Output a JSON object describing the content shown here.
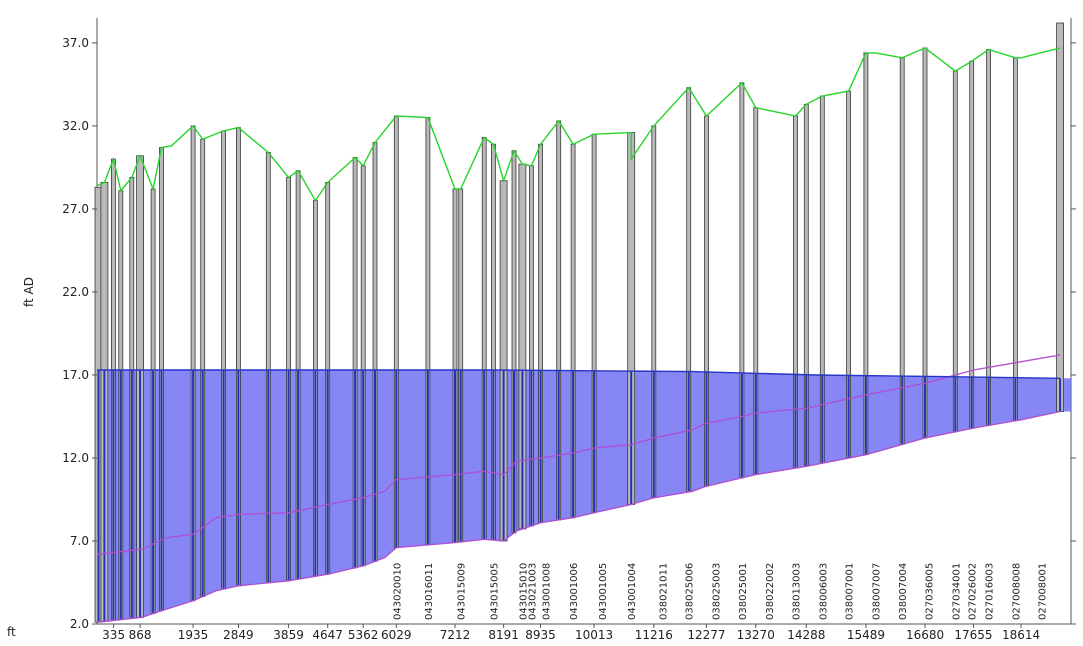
{
  "chart_data": {
    "type": "line",
    "ylabel": "ft AD",
    "xlabel": "ft",
    "ylim": [
      2.0,
      38.5
    ],
    "xlim": [
      0,
      19620
    ],
    "y_ticks": [
      "2.0",
      "7.0",
      "12.0",
      "17.0",
      "22.0",
      "27.0",
      "32.0",
      "37.0"
    ],
    "x_ticks": [
      {
        "x": 335,
        "label": "335"
      },
      {
        "x": 868,
        "label": "868"
      },
      {
        "x": 1935,
        "label": "1935"
      },
      {
        "x": 2849,
        "label": "2849"
      },
      {
        "x": 3859,
        "label": "3859"
      },
      {
        "x": 4647,
        "label": "4647"
      },
      {
        "x": 5362,
        "label": "5362"
      },
      {
        "x": 6029,
        "label": "6029"
      },
      {
        "x": 7212,
        "label": "7212"
      },
      {
        "x": 8191,
        "label": "8191"
      },
      {
        "x": 8935,
        "label": "8935"
      },
      {
        "x": 10013,
        "label": "10013"
      },
      {
        "x": 11216,
        "label": "11216"
      },
      {
        "x": 12277,
        "label": "12277"
      },
      {
        "x": 13270,
        "label": "13270"
      },
      {
        "x": 14288,
        "label": "14288"
      },
      {
        "x": 15489,
        "label": "15489"
      },
      {
        "x": 16680,
        "label": "16680"
      },
      {
        "x": 17655,
        "label": "17655"
      },
      {
        "x": 18614,
        "label": "18614"
      }
    ],
    "node_labels": [
      {
        "x": 6029,
        "label": "043020010"
      },
      {
        "x": 6665,
        "label": "043016011"
      },
      {
        "x": 7326,
        "label": "043015009"
      },
      {
        "x": 7985,
        "label": "043015005"
      },
      {
        "x": 8570,
        "label": "043015010"
      },
      {
        "x": 8750,
        "label": "043021003"
      },
      {
        "x": 9035,
        "label": "043001008"
      },
      {
        "x": 9590,
        "label": "043001006"
      },
      {
        "x": 10175,
        "label": "043001005"
      },
      {
        "x": 10760,
        "label": "043001004"
      },
      {
        "x": 11390,
        "label": "038021011"
      },
      {
        "x": 11920,
        "label": "038025006"
      },
      {
        "x": 12460,
        "label": "038025003"
      },
      {
        "x": 12990,
        "label": "038025001"
      },
      {
        "x": 13535,
        "label": "038022002"
      },
      {
        "x": 14070,
        "label": "038013003"
      },
      {
        "x": 14610,
        "label": "038006003"
      },
      {
        "x": 15140,
        "label": "038007001"
      },
      {
        "x": 15680,
        "label": "038007007"
      },
      {
        "x": 16220,
        "label": "038007004"
      },
      {
        "x": 16750,
        "label": "027036005"
      },
      {
        "x": 17290,
        "label": "027034001"
      },
      {
        "x": 17620,
        "label": "027026002"
      },
      {
        "x": 17960,
        "label": "027016003"
      },
      {
        "x": 18500,
        "label": "027008008"
      },
      {
        "x": 19030,
        "label": "027008001"
      }
    ],
    "ground_level": {
      "name": "",
      "color": "#27d42a",
      "points": [
        [
          0,
          28.4
        ],
        [
          150,
          28.6
        ],
        [
          330,
          30.0
        ],
        [
          480,
          28.1
        ],
        [
          700,
          28.9
        ],
        [
          868,
          30.2
        ],
        [
          1130,
          28.2
        ],
        [
          1300,
          30.7
        ],
        [
          1500,
          30.8
        ],
        [
          1935,
          32.0
        ],
        [
          2130,
          31.2
        ],
        [
          2550,
          31.7
        ],
        [
          2849,
          31.9
        ],
        [
          3450,
          30.4
        ],
        [
          3859,
          28.9
        ],
        [
          4050,
          29.3
        ],
        [
          4400,
          27.5
        ],
        [
          4647,
          28.6
        ],
        [
          5200,
          30.1
        ],
        [
          5362,
          29.6
        ],
        [
          5600,
          31.0
        ],
        [
          6029,
          32.6
        ],
        [
          6665,
          32.5
        ],
        [
          7212,
          28.2
        ],
        [
          7326,
          28.2
        ],
        [
          7800,
          31.3
        ],
        [
          7985,
          30.9
        ],
        [
          8191,
          28.7
        ],
        [
          8400,
          30.5
        ],
        [
          8570,
          29.7
        ],
        [
          8750,
          29.6
        ],
        [
          8935,
          30.9
        ],
        [
          9300,
          32.3
        ],
        [
          9590,
          30.9
        ],
        [
          10013,
          31.5
        ],
        [
          10760,
          31.6
        ],
        [
          10760,
          30.0
        ],
        [
          11216,
          32.0
        ],
        [
          11920,
          34.3
        ],
        [
          12277,
          32.6
        ],
        [
          12990,
          34.6
        ],
        [
          13270,
          33.1
        ],
        [
          14070,
          32.6
        ],
        [
          14288,
          33.3
        ],
        [
          14610,
          33.8
        ],
        [
          15140,
          34.1
        ],
        [
          15489,
          36.4
        ],
        [
          15680,
          36.4
        ],
        [
          16220,
          36.1
        ],
        [
          16680,
          36.7
        ],
        [
          17290,
          35.3
        ],
        [
          17620,
          35.9
        ],
        [
          17960,
          36.6
        ],
        [
          18500,
          36.1
        ],
        [
          18614,
          36.1
        ],
        [
          19400,
          36.7
        ]
      ]
    },
    "hydraulic_grade": {
      "name": "",
      "color": "#2436c7",
      "points": [
        [
          0,
          17.3
        ],
        [
          8000,
          17.3
        ],
        [
          12000,
          17.2
        ],
        [
          14500,
          17.0
        ],
        [
          17000,
          16.9
        ],
        [
          19400,
          16.8
        ]
      ]
    },
    "pipe_crown": {
      "name": "",
      "color": "#b04fd0",
      "points": [
        [
          0,
          6.2
        ],
        [
          900,
          6.5
        ],
        [
          1400,
          7.2
        ],
        [
          1935,
          7.4
        ],
        [
          2400,
          8.4
        ],
        [
          2849,
          8.6
        ],
        [
          3859,
          8.7
        ],
        [
          4647,
          9.2
        ],
        [
          5362,
          9.6
        ],
        [
          5800,
          10.0
        ],
        [
          6029,
          10.7
        ],
        [
          7212,
          11.0
        ],
        [
          7800,
          11.2
        ],
        [
          8191,
          11.0
        ],
        [
          8450,
          11.8
        ],
        [
          8935,
          12.0
        ],
        [
          9590,
          12.3
        ],
        [
          10013,
          12.6
        ],
        [
          10760,
          12.8
        ],
        [
          11216,
          13.2
        ],
        [
          12000,
          13.7
        ],
        [
          12277,
          14.1
        ],
        [
          12990,
          14.5
        ],
        [
          13270,
          14.7
        ],
        [
          14288,
          15.0
        ],
        [
          15489,
          15.8
        ],
        [
          16680,
          16.5
        ],
        [
          17655,
          17.3
        ],
        [
          18614,
          17.8
        ],
        [
          19400,
          18.2
        ]
      ]
    },
    "pipe_invert": {
      "name": "",
      "color": "#b04fd0",
      "points": [
        [
          0,
          2.1
        ],
        [
          900,
          2.4
        ],
        [
          1400,
          2.9
        ],
        [
          1935,
          3.4
        ],
        [
          2400,
          4.0
        ],
        [
          2849,
          4.3
        ],
        [
          3859,
          4.6
        ],
        [
          4647,
          5.0
        ],
        [
          5362,
          5.5
        ],
        [
          5800,
          6.0
        ],
        [
          6029,
          6.6
        ],
        [
          7212,
          6.9
        ],
        [
          7800,
          7.1
        ],
        [
          8191,
          7.0
        ],
        [
          8450,
          7.6
        ],
        [
          8935,
          8.1
        ],
        [
          9590,
          8.4
        ],
        [
          10013,
          8.7
        ],
        [
          10760,
          9.2
        ],
        [
          11216,
          9.6
        ],
        [
          12000,
          10.0
        ],
        [
          12277,
          10.3
        ],
        [
          12990,
          10.8
        ],
        [
          13270,
          11.0
        ],
        [
          14288,
          11.5
        ],
        [
          15489,
          12.2
        ],
        [
          16680,
          13.2
        ],
        [
          17655,
          13.8
        ],
        [
          18614,
          14.3
        ],
        [
          19400,
          14.8
        ]
      ]
    },
    "structures": {
      "fill": "#b9b9b9",
      "outline": "#3a3a3a",
      "columns": [
        {
          "x": 30,
          "top": 28.3,
          "w": 2
        },
        {
          "x": 150,
          "top": 28.6,
          "w": 2
        },
        {
          "x": 330,
          "top": 30.0,
          "w": 1
        },
        {
          "x": 480,
          "top": 28.1,
          "w": 1
        },
        {
          "x": 700,
          "top": 28.9,
          "w": 1
        },
        {
          "x": 868,
          "top": 30.2,
          "w": 2
        },
        {
          "x": 1130,
          "top": 28.2,
          "w": 1
        },
        {
          "x": 1300,
          "top": 30.7,
          "w": 1
        },
        {
          "x": 1935,
          "top": 32.0,
          "w": 1
        },
        {
          "x": 2130,
          "top": 31.2,
          "w": 1
        },
        {
          "x": 2550,
          "top": 31.7,
          "w": 1
        },
        {
          "x": 2849,
          "top": 31.9,
          "w": 1
        },
        {
          "x": 3450,
          "top": 30.4,
          "w": 1
        },
        {
          "x": 3859,
          "top": 28.9,
          "w": 1
        },
        {
          "x": 4050,
          "top": 29.3,
          "w": 1
        },
        {
          "x": 4400,
          "top": 27.5,
          "w": 1
        },
        {
          "x": 4647,
          "top": 28.6,
          "w": 1
        },
        {
          "x": 5200,
          "top": 30.1,
          "w": 1
        },
        {
          "x": 5362,
          "top": 29.6,
          "w": 1
        },
        {
          "x": 5600,
          "top": 31.0,
          "w": 1
        },
        {
          "x": 6029,
          "top": 32.6,
          "w": 1
        },
        {
          "x": 6665,
          "top": 32.5,
          "w": 1
        },
        {
          "x": 7212,
          "top": 28.2,
          "w": 1
        },
        {
          "x": 7326,
          "top": 28.2,
          "w": 1
        },
        {
          "x": 7800,
          "top": 31.3,
          "w": 1
        },
        {
          "x": 7985,
          "top": 30.9,
          "w": 1
        },
        {
          "x": 8191,
          "top": 28.7,
          "w": 2
        },
        {
          "x": 8400,
          "top": 30.5,
          "w": 1
        },
        {
          "x": 8570,
          "top": 29.7,
          "w": 2
        },
        {
          "x": 8750,
          "top": 29.6,
          "w": 1
        },
        {
          "x": 8935,
          "top": 30.9,
          "w": 1
        },
        {
          "x": 9300,
          "top": 32.3,
          "w": 1
        },
        {
          "x": 9590,
          "top": 30.9,
          "w": 1
        },
        {
          "x": 10013,
          "top": 31.5,
          "w": 1
        },
        {
          "x": 10760,
          "top": 31.6,
          "w": 2
        },
        {
          "x": 11216,
          "top": 32.0,
          "w": 1
        },
        {
          "x": 11920,
          "top": 34.3,
          "w": 1
        },
        {
          "x": 12277,
          "top": 32.6,
          "w": 1
        },
        {
          "x": 12990,
          "top": 34.6,
          "w": 1
        },
        {
          "x": 13270,
          "top": 33.1,
          "w": 1
        },
        {
          "x": 14070,
          "top": 32.6,
          "w": 1
        },
        {
          "x": 14288,
          "top": 33.3,
          "w": 1
        },
        {
          "x": 14610,
          "top": 33.8,
          "w": 1
        },
        {
          "x": 15140,
          "top": 34.1,
          "w": 1
        },
        {
          "x": 15489,
          "top": 36.4,
          "w": 1
        },
        {
          "x": 16220,
          "top": 36.1,
          "w": 1
        },
        {
          "x": 16680,
          "top": 36.7,
          "w": 1
        },
        {
          "x": 17290,
          "top": 35.3,
          "w": 1
        },
        {
          "x": 17620,
          "top": 35.9,
          "w": 1
        },
        {
          "x": 17960,
          "top": 36.6,
          "w": 1
        },
        {
          "x": 18500,
          "top": 36.1,
          "w": 1
        },
        {
          "x": 19400,
          "top": 38.2,
          "w": 2
        }
      ]
    },
    "grid": false
  }
}
